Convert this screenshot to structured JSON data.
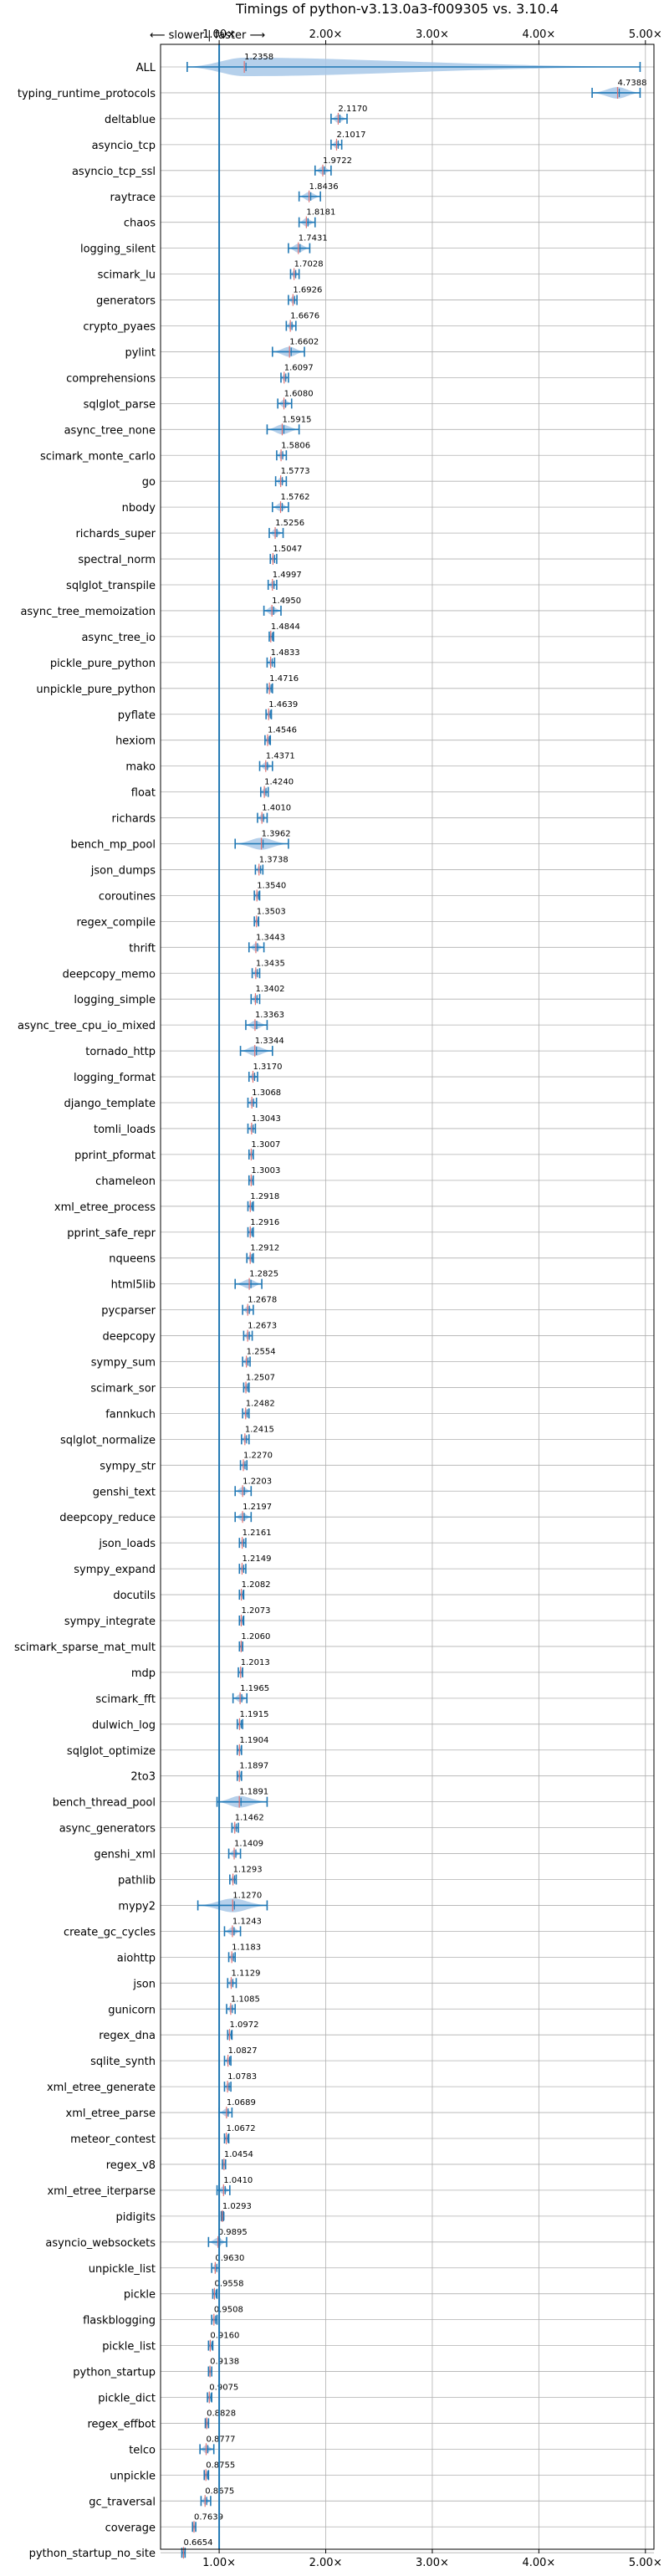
{
  "chart_data": {
    "type": "violin",
    "orientation": "horizontal",
    "title": "Timings of python-v3.13.0a3-f009305 vs. 3.10.4",
    "direction_label": "⟵ slower | faster ⟶",
    "xlim": [
      0.45,
      5.08
    ],
    "reference_line": 1.0,
    "x_ticks": [
      1,
      2,
      3,
      4,
      5
    ],
    "x_tick_labels": [
      "1.00×",
      "2.00×",
      "3.00×",
      "4.00×",
      "5.00×"
    ],
    "ticks_on_top_and_bottom": true,
    "grid": true,
    "colors": {
      "violin": "#a8c8e8",
      "line": "#1f77b4",
      "median": "#e07070"
    },
    "categories": [
      "ALL",
      "typing_runtime_protocols",
      "deltablue",
      "asyncio_tcp",
      "asyncio_tcp_ssl",
      "raytrace",
      "chaos",
      "logging_silent",
      "scimark_lu",
      "generators",
      "crypto_pyaes",
      "pylint",
      "comprehensions",
      "sqlglot_parse",
      "async_tree_none",
      "scimark_monte_carlo",
      "go",
      "nbody",
      "richards_super",
      "spectral_norm",
      "sqlglot_transpile",
      "async_tree_memoization",
      "async_tree_io",
      "pickle_pure_python",
      "unpickle_pure_python",
      "pyflate",
      "hexiom",
      "mako",
      "float",
      "richards",
      "bench_mp_pool",
      "json_dumps",
      "coroutines",
      "regex_compile",
      "thrift",
      "deepcopy_memo",
      "logging_simple",
      "async_tree_cpu_io_mixed",
      "tornado_http",
      "logging_format",
      "django_template",
      "tomli_loads",
      "pprint_pformat",
      "chameleon",
      "xml_etree_process",
      "pprint_safe_repr",
      "nqueens",
      "html5lib",
      "pycparser",
      "deepcopy",
      "sympy_sum",
      "scimark_sor",
      "fannkuch",
      "sqlglot_normalize",
      "sympy_str",
      "genshi_text",
      "deepcopy_reduce",
      "json_loads",
      "sympy_expand",
      "docutils",
      "sympy_integrate",
      "scimark_sparse_mat_mult",
      "mdp",
      "scimark_fft",
      "dulwich_log",
      "sqlglot_optimize",
      "2to3",
      "bench_thread_pool",
      "async_generators",
      "genshi_xml",
      "pathlib",
      "mypy2",
      "create_gc_cycles",
      "aiohttp",
      "json",
      "gunicorn",
      "regex_dna",
      "sqlite_synth",
      "xml_etree_generate",
      "xml_etree_parse",
      "meteor_contest",
      "regex_v8",
      "xml_etree_iterparse",
      "pidigits",
      "asyncio_websockets",
      "unpickle_list",
      "pickle",
      "flaskblogging",
      "pickle_list",
      "python_startup",
      "pickle_dict",
      "regex_effbot",
      "telco",
      "unpickle",
      "gc_traversal",
      "coverage",
      "python_startup_no_site"
    ],
    "values": [
      1.2358,
      4.7388,
      2.117,
      2.1017,
      1.9722,
      1.8436,
      1.8181,
      1.7431,
      1.7028,
      1.6926,
      1.6676,
      1.6602,
      1.6097,
      1.608,
      1.5915,
      1.5806,
      1.5773,
      1.5762,
      1.5256,
      1.5047,
      1.4997,
      1.495,
      1.4844,
      1.4833,
      1.4716,
      1.4639,
      1.4546,
      1.4371,
      1.424,
      1.401,
      1.3962,
      1.3738,
      1.354,
      1.3503,
      1.3443,
      1.3435,
      1.3402,
      1.3363,
      1.3344,
      1.317,
      1.3068,
      1.3043,
      1.3007,
      1.3003,
      1.2918,
      1.2916,
      1.2912,
      1.2825,
      1.2678,
      1.2673,
      1.2554,
      1.2507,
      1.2482,
      1.2415,
      1.227,
      1.2203,
      1.2197,
      1.2161,
      1.2149,
      1.2082,
      1.2073,
      1.206,
      1.2013,
      1.1965,
      1.1915,
      1.1904,
      1.1897,
      1.1891,
      1.1462,
      1.1409,
      1.1293,
      1.127,
      1.1243,
      1.1183,
      1.1129,
      1.1085,
      1.0972,
      1.0827,
      1.0783,
      1.0689,
      1.0672,
      1.0454,
      1.041,
      1.0293,
      0.9895,
      0.963,
      0.9558,
      0.9508,
      0.916,
      0.9138,
      0.9075,
      0.8828,
      0.8777,
      0.8755,
      0.8675,
      0.7639,
      0.6654
    ],
    "value_labels": [
      "1.2358",
      "4.7388",
      "2.1170",
      "2.1017",
      "1.9722",
      "1.8436",
      "1.8181",
      "1.7431",
      "1.7028",
      "1.6926",
      "1.6676",
      "1.6602",
      "1.6097",
      "1.6080",
      "1.5915",
      "1.5806",
      "1.5773",
      "1.5762",
      "1.5256",
      "1.5047",
      "1.4997",
      "1.4950",
      "1.4844",
      "1.4833",
      "1.4716",
      "1.4639",
      "1.4546",
      "1.4371",
      "1.4240",
      "1.4010",
      "1.3962",
      "1.3738",
      "1.3540",
      "1.3503",
      "1.3443",
      "1.3435",
      "1.3402",
      "1.3363",
      "1.3344",
      "1.3170",
      "1.3068",
      "1.3043",
      "1.3007",
      "1.3003",
      "1.2918",
      "1.2916",
      "1.2912",
      "1.2825",
      "1.2678",
      "1.2673",
      "1.2554",
      "1.2507",
      "1.2482",
      "1.2415",
      "1.2270",
      "1.2203",
      "1.2197",
      "1.2161",
      "1.2149",
      "1.2082",
      "1.2073",
      "1.2060",
      "1.2013",
      "1.1965",
      "1.1915",
      "1.1904",
      "1.1897",
      "1.1891",
      "1.1462",
      "1.1409",
      "1.1293",
      "1.1270",
      "1.1243",
      "1.1183",
      "1.1129",
      "1.1085",
      "1.0972",
      "1.0827",
      "1.0783",
      "1.0689",
      "1.0672",
      "1.0454",
      "1.0410",
      "1.0293",
      "0.9895",
      "0.9630",
      "0.9558",
      "0.9508",
      "0.9160",
      "0.9138",
      "0.9075",
      "0.8828",
      "0.8777",
      "0.8755",
      "0.8675",
      "0.7639",
      "0.6654"
    ],
    "ranges": [
      [
        0.7,
        4.95
      ],
      [
        4.5,
        4.95
      ],
      [
        2.05,
        2.2
      ],
      [
        2.05,
        2.15
      ],
      [
        1.9,
        2.05
      ],
      [
        1.75,
        1.95
      ],
      [
        1.75,
        1.9
      ],
      [
        1.65,
        1.85
      ],
      [
        1.67,
        1.75
      ],
      [
        1.65,
        1.73
      ],
      [
        1.63,
        1.72
      ],
      [
        1.5,
        1.8
      ],
      [
        1.58,
        1.65
      ],
      [
        1.55,
        1.68
      ],
      [
        1.45,
        1.75
      ],
      [
        1.54,
        1.63
      ],
      [
        1.53,
        1.63
      ],
      [
        1.5,
        1.65
      ],
      [
        1.47,
        1.6
      ],
      [
        1.48,
        1.54
      ],
      [
        1.46,
        1.54
      ],
      [
        1.42,
        1.58
      ],
      [
        1.47,
        1.51
      ],
      [
        1.45,
        1.52
      ],
      [
        1.45,
        1.5
      ],
      [
        1.44,
        1.49
      ],
      [
        1.43,
        1.48
      ],
      [
        1.38,
        1.5
      ],
      [
        1.39,
        1.46
      ],
      [
        1.36,
        1.45
      ],
      [
        1.15,
        1.65
      ],
      [
        1.34,
        1.41
      ],
      [
        1.33,
        1.38
      ],
      [
        1.33,
        1.37
      ],
      [
        1.28,
        1.42
      ],
      [
        1.31,
        1.38
      ],
      [
        1.3,
        1.38
      ],
      [
        1.25,
        1.45
      ],
      [
        1.2,
        1.5
      ],
      [
        1.28,
        1.36
      ],
      [
        1.27,
        1.35
      ],
      [
        1.27,
        1.34
      ],
      [
        1.28,
        1.32
      ],
      [
        1.28,
        1.32
      ],
      [
        1.27,
        1.32
      ],
      [
        1.27,
        1.32
      ],
      [
        1.26,
        1.32
      ],
      [
        1.15,
        1.4
      ],
      [
        1.22,
        1.32
      ],
      [
        1.23,
        1.31
      ],
      [
        1.22,
        1.29
      ],
      [
        1.23,
        1.28
      ],
      [
        1.22,
        1.28
      ],
      [
        1.21,
        1.28
      ],
      [
        1.2,
        1.26
      ],
      [
        1.15,
        1.3
      ],
      [
        1.15,
        1.3
      ],
      [
        1.19,
        1.25
      ],
      [
        1.19,
        1.25
      ],
      [
        1.19,
        1.23
      ],
      [
        1.19,
        1.23
      ],
      [
        1.19,
        1.22
      ],
      [
        1.18,
        1.22
      ],
      [
        1.13,
        1.26
      ],
      [
        1.17,
        1.22
      ],
      [
        1.17,
        1.21
      ],
      [
        1.17,
        1.21
      ],
      [
        0.98,
        1.45
      ],
      [
        1.12,
        1.18
      ],
      [
        1.09,
        1.2
      ],
      [
        1.1,
        1.16
      ],
      [
        0.8,
        1.45
      ],
      [
        1.05,
        1.2
      ],
      [
        1.09,
        1.15
      ],
      [
        1.08,
        1.16
      ],
      [
        1.07,
        1.15
      ],
      [
        1.08,
        1.12
      ],
      [
        1.05,
        1.11
      ],
      [
        1.05,
        1.11
      ],
      [
        1.0,
        1.12
      ],
      [
        1.05,
        1.09
      ],
      [
        1.03,
        1.06
      ],
      [
        0.98,
        1.1
      ],
      [
        1.02,
        1.04
      ],
      [
        0.9,
        1.07
      ],
      [
        0.93,
        1.0
      ],
      [
        0.94,
        0.98
      ],
      [
        0.93,
        0.98
      ],
      [
        0.9,
        0.94
      ],
      [
        0.9,
        0.93
      ],
      [
        0.89,
        0.93
      ],
      [
        0.87,
        0.9
      ],
      [
        0.82,
        0.95
      ],
      [
        0.86,
        0.9
      ],
      [
        0.83,
        0.92
      ],
      [
        0.75,
        0.78
      ],
      [
        0.65,
        0.68
      ]
    ]
  }
}
